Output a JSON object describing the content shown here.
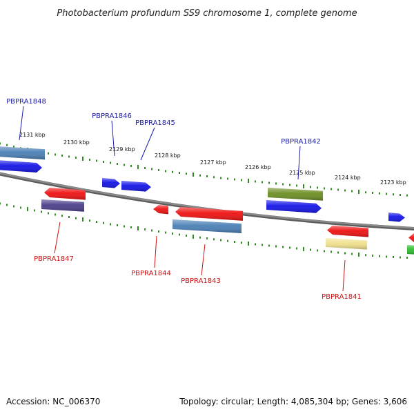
{
  "title": "Photobacterium profundum SS9 chromosome 1, complete genome",
  "footer": {
    "accession": "Accession: NC_006370",
    "summary": "Topology: circular; Length: 4,085,304 bp; Genes: 3,606"
  },
  "colors": {
    "backbone": "#8a8a8a",
    "tick": "#2e8b1e",
    "forward_label": "#1a1aa8",
    "reverse_label": "#cc1111",
    "blue": "#1414e6",
    "steelblue": "#4a7fb5",
    "red": "#ee1111",
    "navy": "#4a3f8a",
    "olive": "#6b8e23",
    "khaki": "#f0e08c",
    "green": "#2ebd2e"
  },
  "scale": {
    "unit": "kbp",
    "ticks": [
      {
        "label": "2131 kbp"
      },
      {
        "label": "2130 kbp"
      },
      {
        "label": "2129 kbp"
      },
      {
        "label": "2128 kbp"
      },
      {
        "label": "2127 kbp"
      },
      {
        "label": "2126 kbp"
      },
      {
        "label": "2125 kbp"
      },
      {
        "label": "2124 kbp"
      },
      {
        "label": "2123 kbp"
      }
    ]
  },
  "genes": [
    {
      "name": "PBPRA1848",
      "strand": "forward",
      "color": "steelblue"
    },
    {
      "name": "PBPRA1846",
      "strand": "forward",
      "color": "blue"
    },
    {
      "name": "PBPRA1845",
      "strand": "forward",
      "color": "blue"
    },
    {
      "name": "PBPRA1842",
      "strand": "forward",
      "color": "olive"
    },
    {
      "name": "PBPRA1847",
      "strand": "reverse",
      "color": "navy"
    },
    {
      "name": "PBPRA1844",
      "strand": "reverse",
      "color": "red"
    },
    {
      "name": "PBPRA1843",
      "strand": "reverse",
      "color": "steelblue"
    },
    {
      "name": "PBPRA1841",
      "strand": "reverse",
      "color": "khaki"
    }
  ]
}
